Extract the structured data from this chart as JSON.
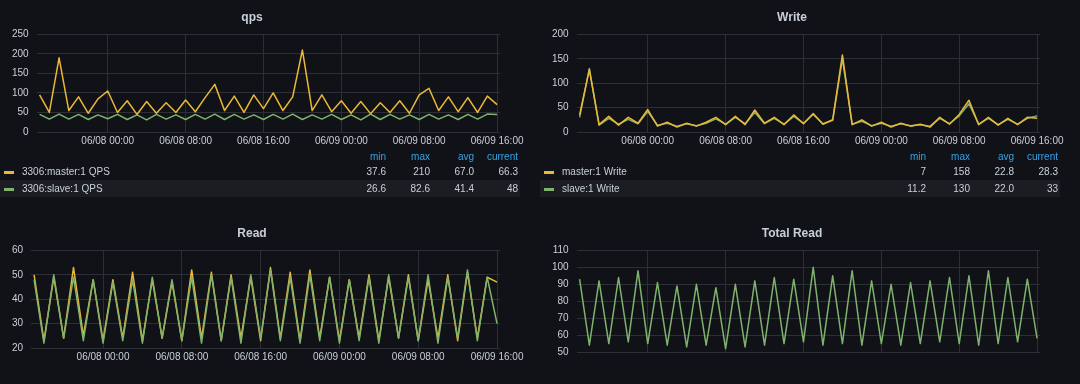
{
  "chart_data": [
    {
      "type": "line",
      "title": "qps",
      "legend": "bottom",
      "grid": true,
      "marker": "none",
      "line_style": "solid",
      "x": [
        "--06-07T17:00",
        "--06-07T18:00",
        "--06-07T19:00",
        "--06-07T20:00",
        "--06-07T21:00",
        "--06-07T22:00",
        "--06-07T23:00",
        "--06-08T00:00",
        "--06-08T01:00",
        "--06-08T02:00",
        "--06-08T03:00",
        "--06-08T04:00",
        "--06-08T05:00",
        "--06-08T06:00",
        "--06-08T07:00",
        "--06-08T08:00",
        "--06-08T09:00",
        "--06-08T10:00",
        "--06-08T11:00",
        "--06-08T12:00",
        "--06-08T13:00",
        "--06-08T14:00",
        "--06-08T15:00",
        "--06-08T16:00",
        "--06-08T17:00",
        "--06-08T18:00",
        "--06-08T19:00",
        "--06-08T20:00",
        "--06-08T21:00",
        "--06-08T22:00",
        "--06-08T23:00",
        "--06-09T00:00",
        "--06-09T01:00",
        "--06-09T02:00",
        "--06-09T03:00",
        "--06-09T04:00",
        "--06-09T05:00",
        "--06-09T06:00",
        "--06-09T07:00",
        "--06-09T08:00",
        "--06-09T09:00",
        "--06-09T10:00",
        "--06-09T11:00",
        "--06-09T12:00",
        "--06-09T13:00",
        "--06-09T14:00",
        "--06-09T15:00",
        "--06-09T16:00"
      ],
      "xlim": [
        "--06-07T16:42",
        "--06-09T16:18"
      ],
      "xticks": [
        {
          "value": "--06-08T00:00",
          "label": "06/08 00:00"
        },
        {
          "value": "--06-08T08:00",
          "label": "06/08 08:00"
        },
        {
          "value": "--06-08T16:00",
          "label": "06/08 16:00"
        },
        {
          "value": "--06-09T00:00",
          "label": "06/09 00:00"
        },
        {
          "value": "--06-09T08:00",
          "label": "06/09 08:00"
        },
        {
          "value": "--06-09T16:00",
          "label": "06/09 16:00"
        }
      ],
      "ylim": [
        0,
        250
      ],
      "yticks": [
        0,
        50,
        100,
        150,
        200,
        250
      ],
      "annotations": [
        "min",
        "max",
        "avg",
        "current",
        "37.6",
        "210",
        "67.0",
        "66.3",
        "26.6",
        "82.6",
        "41.4",
        "48"
      ],
      "series": [
        {
          "name": "3306:master:1 QPS",
          "color": "#eab839",
          "values": [
            95,
            50,
            190,
            55,
            90,
            48,
            85,
            105,
            50,
            80,
            45,
            78,
            48,
            75,
            50,
            82,
            52,
            88,
            122,
            55,
            92,
            50,
            95,
            60,
            100,
            55,
            90,
            210,
            55,
            95,
            52,
            80,
            48,
            78,
            47,
            75,
            50,
            80,
            48,
            95,
            112,
            55,
            90,
            52,
            88,
            50,
            92,
            70
          ]
        },
        {
          "name": "3306:slave:1 QPS",
          "color": "#7eb26d",
          "values": [
            45,
            33,
            46,
            33,
            45,
            32,
            44,
            34,
            45,
            32,
            44,
            31,
            45,
            33,
            44,
            32,
            45,
            33,
            46,
            32,
            45,
            33,
            44,
            32,
            45,
            33,
            46,
            32,
            44,
            33,
            45,
            32,
            44,
            31,
            46,
            32,
            45,
            33,
            44,
            32,
            45,
            33,
            44,
            32,
            45,
            33,
            46,
            45
          ]
        }
      ]
    },
    {
      "type": "line",
      "title": "Write",
      "legend": "bottom",
      "grid": true,
      "marker": "none",
      "line_style": "solid",
      "x": [
        "--06-07T17:00",
        "--06-07T18:00",
        "--06-07T19:00",
        "--06-07T20:00",
        "--06-07T21:00",
        "--06-07T22:00",
        "--06-07T23:00",
        "--06-08T00:00",
        "--06-08T01:00",
        "--06-08T02:00",
        "--06-08T03:00",
        "--06-08T04:00",
        "--06-08T05:00",
        "--06-08T06:00",
        "--06-08T07:00",
        "--06-08T08:00",
        "--06-08T09:00",
        "--06-08T10:00",
        "--06-08T11:00",
        "--06-08T12:00",
        "--06-08T13:00",
        "--06-08T14:00",
        "--06-08T15:00",
        "--06-08T16:00",
        "--06-08T17:00",
        "--06-08T18:00",
        "--06-08T19:00",
        "--06-08T20:00",
        "--06-08T21:00",
        "--06-08T22:00",
        "--06-08T23:00",
        "--06-09T00:00",
        "--06-09T01:00",
        "--06-09T02:00",
        "--06-09T03:00",
        "--06-09T04:00",
        "--06-09T05:00",
        "--06-09T06:00",
        "--06-09T07:00",
        "--06-09T08:00",
        "--06-09T09:00",
        "--06-09T10:00",
        "--06-09T11:00",
        "--06-09T12:00",
        "--06-09T13:00",
        "--06-09T14:00",
        "--06-09T15:00",
        "--06-09T16:00"
      ],
      "xlim": [
        "--06-07T16:42",
        "--06-09T16:18"
      ],
      "xticks": [
        {
          "value": "--06-08T00:00",
          "label": "06/08 00:00"
        },
        {
          "value": "--06-08T08:00",
          "label": "06/08 08:00"
        },
        {
          "value": "--06-08T16:00",
          "label": "06/08 16:00"
        },
        {
          "value": "--06-09T00:00",
          "label": "06/09 00:00"
        },
        {
          "value": "--06-09T08:00",
          "label": "06/09 08:00"
        },
        {
          "value": "--06-09T16:00",
          "label": "06/09 16:00"
        }
      ],
      "ylim": [
        0,
        200
      ],
      "yticks": [
        0,
        50,
        100,
        150,
        200
      ],
      "annotations": [
        "min",
        "max",
        "avg",
        "current",
        "7",
        "158",
        "22.8",
        "28.3",
        "11.2",
        "130",
        "22.0",
        "33"
      ],
      "series": [
        {
          "name": "master:1 Write",
          "color": "#eab839",
          "values": [
            35,
            128,
            15,
            32,
            14,
            30,
            18,
            46,
            12,
            20,
            10,
            18,
            12,
            20,
            30,
            15,
            32,
            15,
            45,
            18,
            30,
            15,
            35,
            17,
            38,
            16,
            25,
            158,
            15,
            25,
            12,
            20,
            10,
            18,
            12,
            16,
            10,
            30,
            16,
            36,
            65,
            15,
            30,
            14,
            28,
            15,
            30,
            28
          ]
        },
        {
          "name": "slave:1 Write",
          "color": "#7eb26d",
          "values": [
            30,
            130,
            14,
            28,
            16,
            26,
            17,
            42,
            14,
            18,
            12,
            17,
            13,
            18,
            27,
            16,
            30,
            17,
            40,
            17,
            28,
            16,
            32,
            18,
            36,
            17,
            24,
            150,
            16,
            22,
            13,
            18,
            12,
            17,
            13,
            15,
            12,
            28,
            17,
            33,
            58,
            16,
            28,
            15,
            26,
            16,
            28,
            33
          ]
        }
      ]
    },
    {
      "type": "line",
      "title": "Read",
      "legend": false,
      "grid": true,
      "marker": "none",
      "line_style": "solid",
      "x": [
        "--06-07T17:00",
        "--06-07T18:00",
        "--06-07T19:00",
        "--06-07T20:00",
        "--06-07T21:00",
        "--06-07T22:00",
        "--06-07T23:00",
        "--06-08T00:00",
        "--06-08T01:00",
        "--06-08T02:00",
        "--06-08T03:00",
        "--06-08T04:00",
        "--06-08T05:00",
        "--06-08T06:00",
        "--06-08T07:00",
        "--06-08T08:00",
        "--06-08T09:00",
        "--06-08T10:00",
        "--06-08T11:00",
        "--06-08T12:00",
        "--06-08T13:00",
        "--06-08T14:00",
        "--06-08T15:00",
        "--06-08T16:00",
        "--06-08T17:00",
        "--06-08T18:00",
        "--06-08T19:00",
        "--06-08T20:00",
        "--06-08T21:00",
        "--06-08T22:00",
        "--06-08T23:00",
        "--06-09T00:00",
        "--06-09T01:00",
        "--06-09T02:00",
        "--06-09T03:00",
        "--06-09T04:00",
        "--06-09T05:00",
        "--06-09T06:00",
        "--06-09T07:00",
        "--06-09T08:00",
        "--06-09T09:00",
        "--06-09T10:00",
        "--06-09T11:00",
        "--06-09T12:00",
        "--06-09T13:00",
        "--06-09T14:00",
        "--06-09T15:00",
        "--06-09T16:00"
      ],
      "xlim": [
        "--06-07T16:42",
        "--06-09T16:18"
      ],
      "xticks": [
        {
          "value": "--06-08T00:00",
          "label": "06/08 00:00"
        },
        {
          "value": "--06-08T08:00",
          "label": "06/08 08:00"
        },
        {
          "value": "--06-08T16:00",
          "label": "06/08 16:00"
        },
        {
          "value": "--06-09T00:00",
          "label": "06/09 00:00"
        },
        {
          "value": "--06-09T08:00",
          "label": "06/09 08:00"
        },
        {
          "value": "--06-09T16:00",
          "label": "06/09 16:00"
        }
      ],
      "ylim": [
        20,
        60
      ],
      "yticks": [
        20,
        30,
        40,
        50,
        60
      ],
      "series": [
        {
          "color": "#7eb26d",
          "values": [
            48,
            22,
            50,
            24,
            49,
            23,
            48,
            22,
            47,
            23,
            48,
            22,
            49,
            24,
            48,
            23,
            49,
            22,
            50,
            23,
            49,
            22,
            50,
            24,
            52,
            23,
            49,
            22,
            50,
            23,
            49,
            22,
            48,
            23,
            49,
            22,
            50,
            24,
            49,
            23,
            50,
            22,
            49,
            24,
            52,
            23,
            49,
            30
          ]
        },
        {
          "color": "#eab839",
          "values": [
            50,
            23,
            49,
            24,
            53,
            25,
            48,
            23,
            48,
            24,
            51,
            23,
            48,
            24,
            47,
            23,
            52,
            24,
            51,
            23,
            50,
            24,
            49,
            23,
            53,
            24,
            51,
            23,
            52,
            24,
            49,
            23,
            48,
            24,
            50,
            23,
            49,
            24,
            50,
            23,
            48,
            24,
            50,
            23,
            51,
            24,
            49,
            47
          ]
        }
      ]
    },
    {
      "type": "line",
      "title": "Total Read",
      "legend": false,
      "grid": true,
      "marker": "none",
      "line_style": "solid",
      "tick_labels": "y",
      "x": [
        "--06-07T17:00",
        "--06-07T18:00",
        "--06-07T19:00",
        "--06-07T20:00",
        "--06-07T21:00",
        "--06-07T22:00",
        "--06-07T23:00",
        "--06-08T00:00",
        "--06-08T01:00",
        "--06-08T02:00",
        "--06-08T03:00",
        "--06-08T04:00",
        "--06-08T05:00",
        "--06-08T06:00",
        "--06-08T07:00",
        "--06-08T08:00",
        "--06-08T09:00",
        "--06-08T10:00",
        "--06-08T11:00",
        "--06-08T12:00",
        "--06-08T13:00",
        "--06-08T14:00",
        "--06-08T15:00",
        "--06-08T16:00",
        "--06-08T17:00",
        "--06-08T18:00",
        "--06-08T19:00",
        "--06-08T20:00",
        "--06-08T21:00",
        "--06-08T22:00",
        "--06-08T23:00",
        "--06-09T00:00",
        "--06-09T01:00",
        "--06-09T02:00",
        "--06-09T03:00",
        "--06-09T04:00",
        "--06-09T05:00",
        "--06-09T06:00",
        "--06-09T07:00",
        "--06-09T08:00",
        "--06-09T09:00",
        "--06-09T10:00",
        "--06-09T11:00",
        "--06-09T12:00",
        "--06-09T13:00",
        "--06-09T14:00",
        "--06-09T15:00",
        "--06-09T16:00"
      ],
      "xlim": [
        "--06-07T16:42",
        "--06-09T16:18"
      ],
      "xticks": [
        {
          "value": "--06-08T00:00",
          "label": null
        },
        {
          "value": "--06-08T08:00",
          "label": null
        },
        {
          "value": "--06-08T16:00",
          "label": null
        },
        {
          "value": "--06-09T00:00",
          "label": null
        },
        {
          "value": "--06-09T08:00",
          "label": null
        },
        {
          "value": "--06-09T16:00",
          "label": null
        }
      ],
      "ylim": [
        50,
        110
      ],
      "yticks": [
        50,
        60,
        70,
        80,
        90,
        100,
        110
      ],
      "series": [
        {
          "color": "#7eb26d",
          "values": [
            93,
            54,
            92,
            55,
            94,
            56,
            98,
            55,
            91,
            54,
            89,
            53,
            90,
            54,
            88,
            52,
            90,
            53,
            92,
            54,
            94,
            55,
            93,
            56,
            100,
            54,
            95,
            55,
            98,
            54,
            92,
            55,
            90,
            54,
            91,
            55,
            92,
            56,
            94,
            55,
            95,
            54,
            98,
            55,
            94,
            56,
            93,
            58
          ]
        }
      ]
    }
  ]
}
